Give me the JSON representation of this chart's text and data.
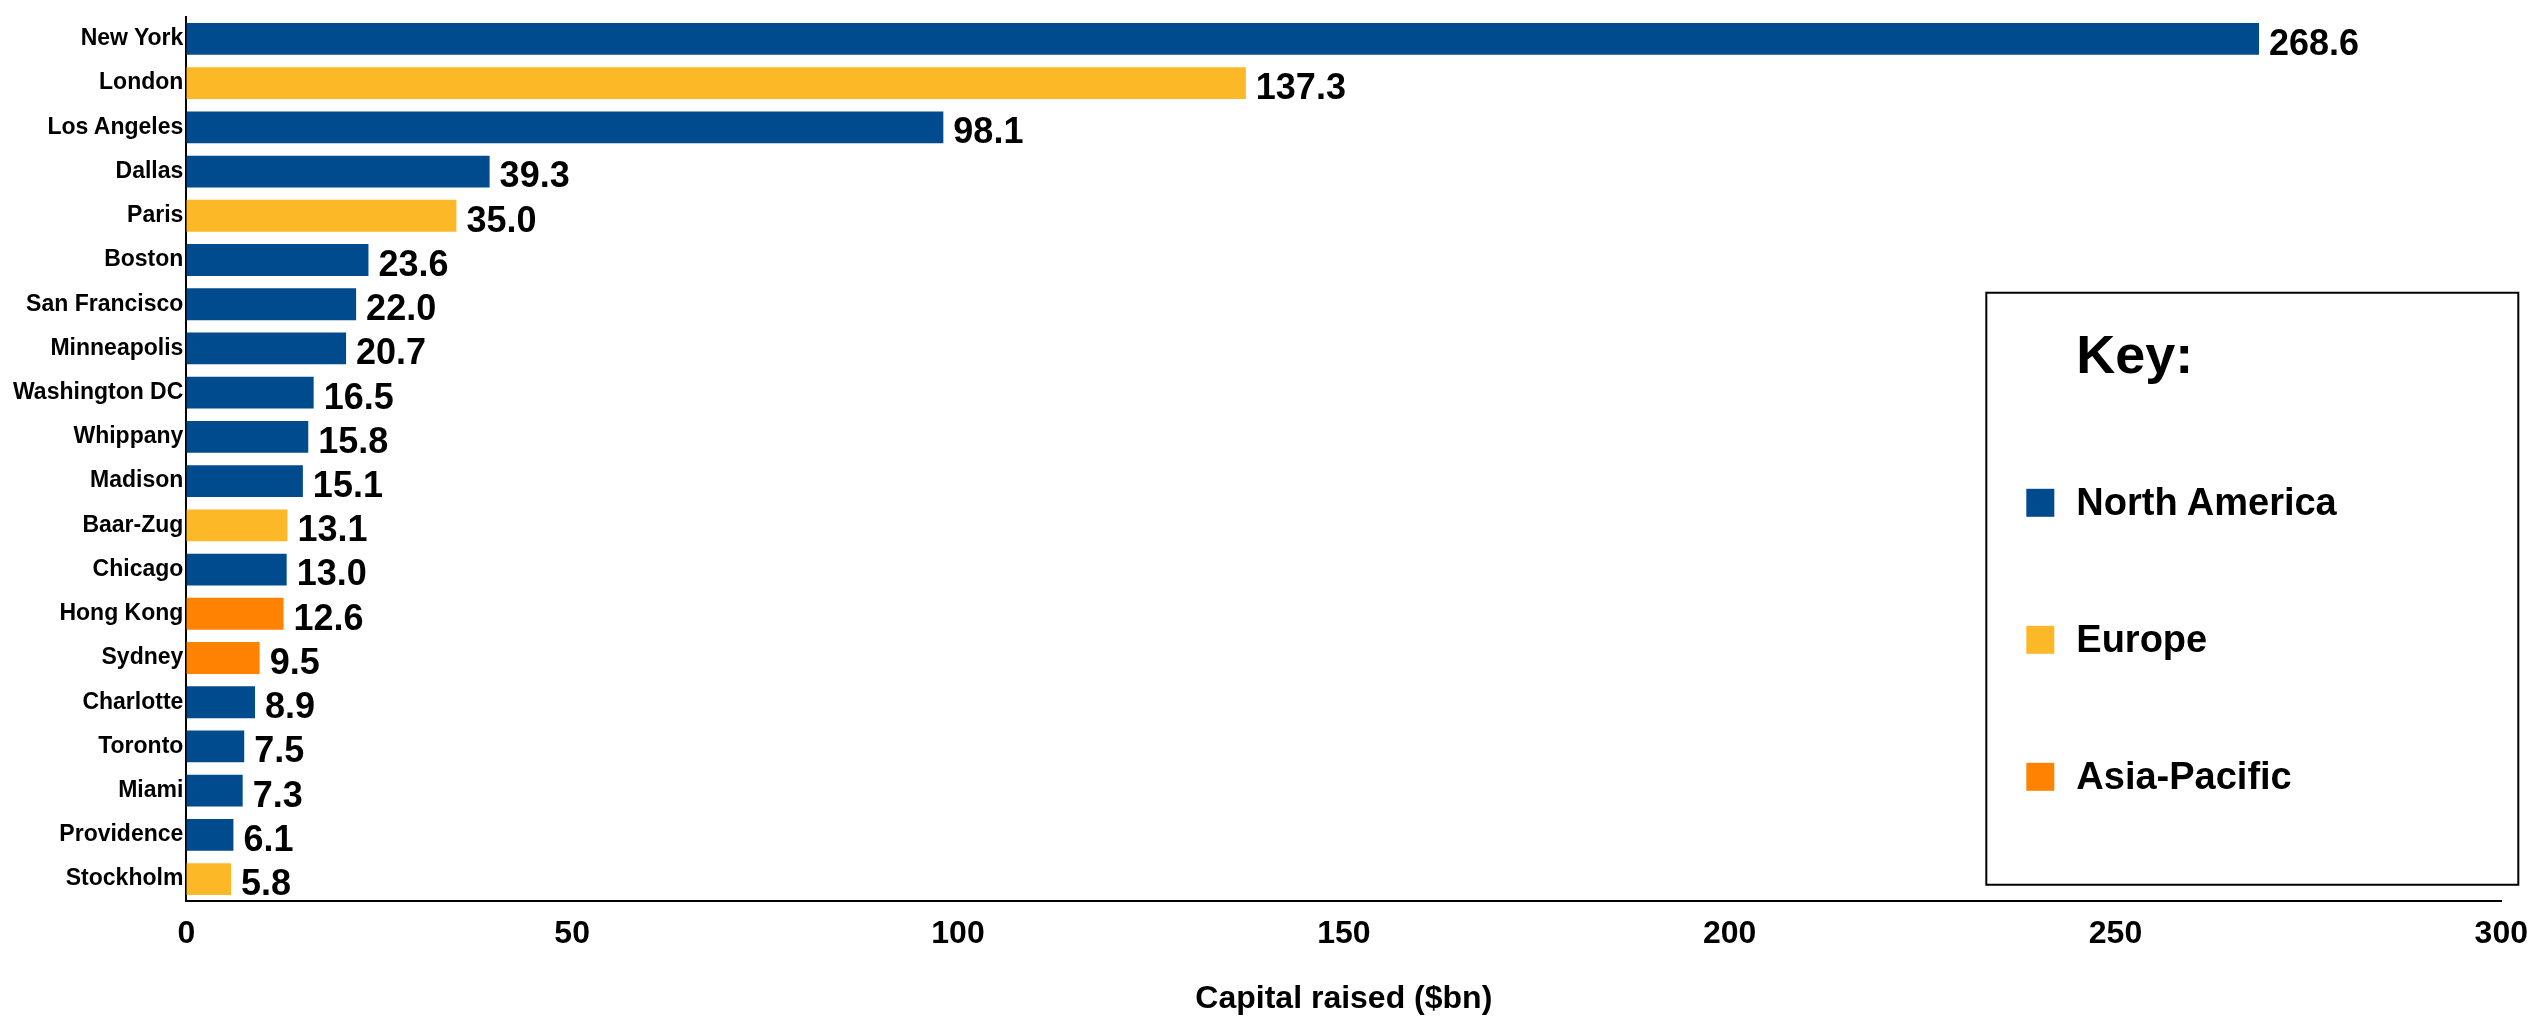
{
  "chart_data": {
    "type": "bar",
    "orientation": "horizontal",
    "categories": [
      "New York",
      "London",
      "Los Angeles",
      "Dallas",
      "Paris",
      "Boston",
      "San Francisco",
      "Minneapolis",
      "Washington DC",
      "Whippany",
      "Madison",
      "Baar-Zug",
      "Chicago",
      "Hong Kong",
      "Sydney",
      "Charlotte",
      "Toronto",
      "Miami",
      "Providence",
      "Stockholm"
    ],
    "series": [
      {
        "name": "North America",
        "color": "#004b8d",
        "values": [
          268.6,
          null,
          98.1,
          39.3,
          null,
          23.6,
          22.0,
          20.7,
          16.5,
          15.8,
          15.1,
          null,
          13.0,
          null,
          null,
          8.9,
          7.5,
          7.3,
          6.1,
          null
        ],
        "value_labels": [
          "268.6",
          null,
          "98.1",
          "39.3",
          null,
          "23.6",
          "22.0",
          "20.7",
          "16.5",
          "15.8",
          "15.1",
          null,
          "13.0",
          null,
          null,
          "8.9",
          "7.5",
          "7.3",
          "6.1",
          null
        ]
      },
      {
        "name": "Europe",
        "color": "#fdb827",
        "values": [
          null,
          137.3,
          null,
          null,
          35.0,
          null,
          null,
          null,
          null,
          null,
          null,
          13.1,
          null,
          null,
          null,
          null,
          null,
          null,
          null,
          5.8
        ],
        "value_labels": [
          null,
          "137.3",
          null,
          null,
          "35.0",
          null,
          null,
          null,
          null,
          null,
          null,
          "13.1",
          null,
          null,
          null,
          null,
          null,
          null,
          null,
          "5.8"
        ]
      },
      {
        "name": "Asia-Pacific",
        "color": "#ff8200",
        "values": [
          null,
          null,
          null,
          null,
          null,
          null,
          null,
          null,
          null,
          null,
          null,
          null,
          null,
          12.6,
          9.5,
          null,
          null,
          null,
          null,
          null
        ],
        "value_labels": [
          null,
          null,
          null,
          null,
          null,
          null,
          null,
          null,
          null,
          null,
          null,
          null,
          null,
          "12.6",
          "9.5",
          null,
          null,
          null,
          null,
          null
        ]
      }
    ],
    "xlabel": "Capital raised ($bn)",
    "xlim": [
      0,
      300
    ],
    "xticks": [
      0,
      50,
      100,
      150,
      200,
      250,
      300
    ],
    "grid": false,
    "legend": "right",
    "legend_title": "Key:"
  }
}
